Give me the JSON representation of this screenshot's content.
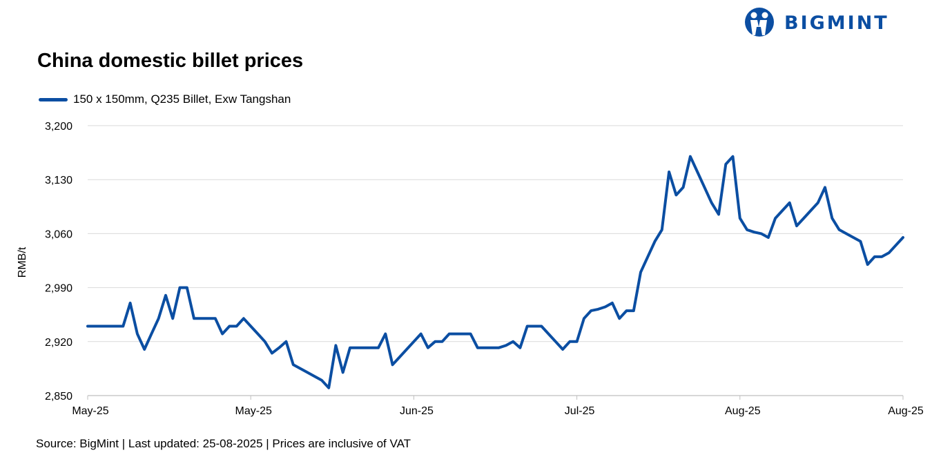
{
  "brand": {
    "name": "BIGMINT",
    "color": "#0b4ea2"
  },
  "source_note": "Source: BigMint | Last updated: 25-08-2025 | Prices are inclusive of VAT",
  "chart_data": {
    "type": "line",
    "title": "China domestic billet prices",
    "xlabel": "",
    "ylabel": "RMB/t",
    "ylim": [
      2850,
      3200
    ],
    "yticks": [
      2850,
      2920,
      2990,
      3060,
      3130,
      3200
    ],
    "ytick_labels": [
      "2,850",
      "2,920",
      "2,990",
      "3,060",
      "3,130",
      "3,200"
    ],
    "xlim": [
      0,
      115
    ],
    "xticks": [
      0,
      23,
      46,
      69,
      92,
      115
    ],
    "xtick_labels": [
      "May-25",
      "May-25",
      "Jun-25",
      "Jul-25",
      "Aug-25",
      "Aug-25"
    ],
    "grid": "horizontal",
    "legend_position": "top-left",
    "series": [
      {
        "name": "150 x 150mm, Q235 Billet, Exw Tangshan",
        "color": "#0b4ea2",
        "x": [
          0,
          1,
          2,
          3,
          4,
          5,
          6,
          7,
          8,
          9,
          10,
          11,
          12,
          13,
          14,
          15,
          16,
          17,
          18,
          19,
          20,
          21,
          22,
          23,
          24,
          25,
          26,
          27,
          28,
          29,
          30,
          31,
          32,
          33,
          34,
          35,
          36,
          37,
          38,
          39,
          40,
          41,
          42,
          43,
          44,
          45,
          46,
          47,
          48,
          49,
          50,
          51,
          52,
          53,
          54,
          55,
          56,
          57,
          58,
          59,
          60,
          61,
          62,
          63,
          64,
          65,
          66,
          67,
          68,
          69,
          70,
          71,
          72,
          73,
          74,
          75,
          76,
          77,
          78,
          79,
          80,
          81,
          82,
          83,
          84,
          85,
          86,
          87,
          88,
          89,
          90,
          91,
          92,
          93,
          94,
          95,
          96,
          97,
          98,
          99,
          100,
          101,
          102,
          103,
          104,
          105,
          106,
          107,
          108,
          109,
          110,
          111,
          112,
          113,
          114,
          115
        ],
        "values": [
          2940,
          2940,
          2940,
          2940,
          2940,
          2940,
          2970,
          2930,
          2910,
          2930,
          2950,
          2980,
          2950,
          2990,
          2990,
          2950,
          2950,
          2950,
          2950,
          2930,
          2940,
          2940,
          2950,
          2940,
          2930,
          2920,
          2905,
          2912,
          2920,
          2890,
          2885,
          2880,
          2875,
          2870,
          2860,
          2915,
          2880,
          2912,
          2912,
          2912,
          2912,
          2912,
          2930,
          2890,
          2900,
          2910,
          2920,
          2930,
          2912,
          2920,
          2920,
          2930,
          2930,
          2930,
          2930,
          2912,
          2912,
          2912,
          2912,
          2915,
          2920,
          2912,
          2940,
          2940,
          2940,
          2930,
          2920,
          2910,
          2920,
          2920,
          2950,
          2960,
          2962,
          2965,
          2970,
          2950,
          2960,
          2960,
          3010,
          3030,
          3050,
          3065,
          3140,
          3110,
          3120,
          3160,
          3140,
          3120,
          3100,
          3085,
          3150,
          3160,
          3080,
          3065,
          3062,
          3060,
          3055,
          3080,
          3090,
          3100,
          3070,
          3080,
          3090,
          3100,
          3120,
          3080,
          3065,
          3060,
          3055,
          3050,
          3020,
          3030,
          3030,
          3035,
          3045,
          3055
        ]
      }
    ]
  }
}
